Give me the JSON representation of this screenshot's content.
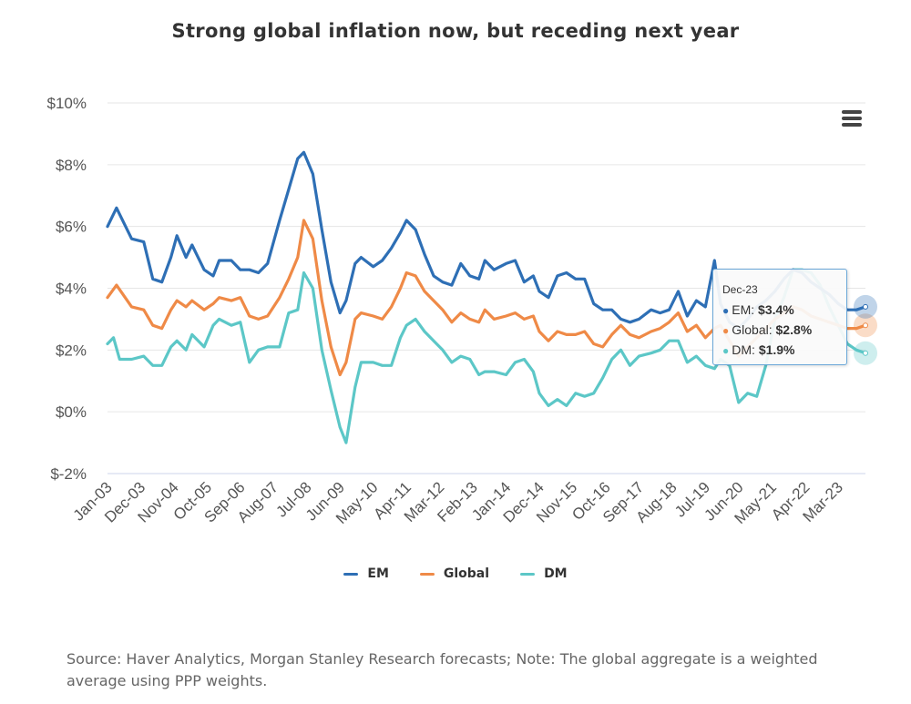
{
  "title": "Strong global inflation now, but receding next year",
  "source": "Source: Haver Analytics, Morgan Stanley Research forecasts; Note: The global aggregate is a weighted average using PPP weights.",
  "menu_icon": "hamburger-menu-icon",
  "tooltip": {
    "date": "Dec-23",
    "rows": [
      {
        "label": "EM: ",
        "value": "$3.4%",
        "color": "#2e6fb5"
      },
      {
        "label": "Global: ",
        "value": "$2.8%",
        "color": "#ef8a47"
      },
      {
        "label": "DM: ",
        "value": "$1.9%",
        "color": "#5cc7c7"
      }
    ]
  },
  "legend": [
    {
      "name": "EM",
      "color": "#2e6fb5"
    },
    {
      "name": "Global",
      "color": "#ef8a47"
    },
    {
      "name": "DM",
      "color": "#5cc7c7"
    }
  ],
  "chart_data": {
    "type": "line",
    "title": "Strong global inflation now, but receding next year",
    "ylim": [
      -2,
      10
    ],
    "y_ticks": [
      -2,
      0,
      2,
      4,
      6,
      8,
      10
    ],
    "y_tick_labels": [
      "$-2%",
      "$0%",
      "$2%",
      "$4%",
      "$6%",
      "$8%",
      "$10%"
    ],
    "x_range": [
      "2003-01",
      "2023-12"
    ],
    "x_tick_labels": [
      "Jan-03",
      "Dec-03",
      "Nov-04",
      "Oct-05",
      "Sep-06",
      "Aug-07",
      "Jul-08",
      "Jun-09",
      "May-10",
      "Apr-11",
      "Mar-12",
      "Feb-13",
      "Jan-14",
      "Dec-14",
      "Nov-15",
      "Oct-16",
      "Sep-17",
      "Aug-18",
      "Jul-19",
      "Jun-20",
      "May-21",
      "Apr-22",
      "Mar-23"
    ],
    "grid": true,
    "legend_position": "bottom",
    "series": [
      {
        "name": "EM",
        "color": "#2e6fb5",
        "points": [
          [
            "2003-01",
            6.0
          ],
          [
            "2003-04",
            6.6
          ],
          [
            "2003-09",
            5.6
          ],
          [
            "2004-01",
            5.5
          ],
          [
            "2004-04",
            4.3
          ],
          [
            "2004-07",
            4.2
          ],
          [
            "2004-10",
            5.0
          ],
          [
            "2004-12",
            5.7
          ],
          [
            "2005-03",
            5.0
          ],
          [
            "2005-05",
            5.4
          ],
          [
            "2005-09",
            4.6
          ],
          [
            "2005-12",
            4.4
          ],
          [
            "2006-02",
            4.9
          ],
          [
            "2006-06",
            4.9
          ],
          [
            "2006-09",
            4.6
          ],
          [
            "2006-12",
            4.6
          ],
          [
            "2007-03",
            4.5
          ],
          [
            "2007-06",
            4.8
          ],
          [
            "2007-10",
            6.2
          ],
          [
            "2008-01",
            7.2
          ],
          [
            "2008-04",
            8.2
          ],
          [
            "2008-06",
            8.4
          ],
          [
            "2008-09",
            7.7
          ],
          [
            "2008-12",
            5.9
          ],
          [
            "2009-03",
            4.2
          ],
          [
            "2009-06",
            3.2
          ],
          [
            "2009-08",
            3.6
          ],
          [
            "2009-11",
            4.8
          ],
          [
            "2010-01",
            5.0
          ],
          [
            "2010-05",
            4.7
          ],
          [
            "2010-08",
            4.9
          ],
          [
            "2010-11",
            5.3
          ],
          [
            "2011-02",
            5.8
          ],
          [
            "2011-04",
            6.2
          ],
          [
            "2011-07",
            5.9
          ],
          [
            "2011-10",
            5.1
          ],
          [
            "2012-01",
            4.4
          ],
          [
            "2012-04",
            4.2
          ],
          [
            "2012-07",
            4.1
          ],
          [
            "2012-10",
            4.8
          ],
          [
            "2013-01",
            4.4
          ],
          [
            "2013-04",
            4.3
          ],
          [
            "2013-06",
            4.9
          ],
          [
            "2013-09",
            4.6
          ],
          [
            "2014-01",
            4.8
          ],
          [
            "2014-04",
            4.9
          ],
          [
            "2014-07",
            4.2
          ],
          [
            "2014-10",
            4.4
          ],
          [
            "2014-12",
            3.9
          ],
          [
            "2015-03",
            3.7
          ],
          [
            "2015-06",
            4.4
          ],
          [
            "2015-09",
            4.5
          ],
          [
            "2015-12",
            4.3
          ],
          [
            "2016-03",
            4.3
          ],
          [
            "2016-06",
            3.5
          ],
          [
            "2016-09",
            3.3
          ],
          [
            "2016-12",
            3.3
          ],
          [
            "2017-03",
            3.0
          ],
          [
            "2017-06",
            2.9
          ],
          [
            "2017-09",
            3.0
          ],
          [
            "2018-01",
            3.3
          ],
          [
            "2018-04",
            3.2
          ],
          [
            "2018-07",
            3.3
          ],
          [
            "2018-10",
            3.9
          ],
          [
            "2019-01",
            3.1
          ],
          [
            "2019-04",
            3.6
          ],
          [
            "2019-07",
            3.4
          ],
          [
            "2019-10",
            4.9
          ],
          [
            "2019-12",
            3.5
          ],
          [
            "2020-03",
            2.9
          ],
          [
            "2020-06",
            2.7
          ],
          [
            "2020-09",
            3.0
          ],
          [
            "2020-12",
            3.4
          ],
          [
            "2021-03",
            3.6
          ],
          [
            "2021-06",
            3.9
          ],
          [
            "2021-09",
            4.3
          ],
          [
            "2021-12",
            4.6
          ],
          [
            "2022-03",
            4.5
          ],
          [
            "2022-06",
            4.2
          ],
          [
            "2022-09",
            4.0
          ],
          [
            "2022-12",
            3.8
          ],
          [
            "2023-03",
            3.5
          ],
          [
            "2023-06",
            3.3
          ],
          [
            "2023-09",
            3.3
          ],
          [
            "2023-12",
            3.4
          ]
        ]
      },
      {
        "name": "Global",
        "color": "#ef8a47",
        "points": [
          [
            "2003-01",
            3.7
          ],
          [
            "2003-04",
            4.1
          ],
          [
            "2003-09",
            3.4
          ],
          [
            "2004-01",
            3.3
          ],
          [
            "2004-04",
            2.8
          ],
          [
            "2004-07",
            2.7
          ],
          [
            "2004-10",
            3.3
          ],
          [
            "2004-12",
            3.6
          ],
          [
            "2005-03",
            3.4
          ],
          [
            "2005-05",
            3.6
          ],
          [
            "2005-09",
            3.3
          ],
          [
            "2005-12",
            3.5
          ],
          [
            "2006-02",
            3.7
          ],
          [
            "2006-06",
            3.6
          ],
          [
            "2006-09",
            3.7
          ],
          [
            "2006-12",
            3.1
          ],
          [
            "2007-03",
            3.0
          ],
          [
            "2007-06",
            3.1
          ],
          [
            "2007-10",
            3.7
          ],
          [
            "2008-01",
            4.3
          ],
          [
            "2008-04",
            5.0
          ],
          [
            "2008-06",
            6.2
          ],
          [
            "2008-09",
            5.6
          ],
          [
            "2008-12",
            3.6
          ],
          [
            "2009-03",
            2.1
          ],
          [
            "2009-06",
            1.2
          ],
          [
            "2009-08",
            1.6
          ],
          [
            "2009-11",
            3.0
          ],
          [
            "2010-01",
            3.2
          ],
          [
            "2010-05",
            3.1
          ],
          [
            "2010-08",
            3.0
          ],
          [
            "2010-11",
            3.4
          ],
          [
            "2011-02",
            4.0
          ],
          [
            "2011-04",
            4.5
          ],
          [
            "2011-07",
            4.4
          ],
          [
            "2011-10",
            3.9
          ],
          [
            "2012-01",
            3.6
          ],
          [
            "2012-04",
            3.3
          ],
          [
            "2012-07",
            2.9
          ],
          [
            "2012-10",
            3.2
          ],
          [
            "2013-01",
            3.0
          ],
          [
            "2013-04",
            2.9
          ],
          [
            "2013-06",
            3.3
          ],
          [
            "2013-09",
            3.0
          ],
          [
            "2014-01",
            3.1
          ],
          [
            "2014-04",
            3.2
          ],
          [
            "2014-07",
            3.0
          ],
          [
            "2014-10",
            3.1
          ],
          [
            "2014-12",
            2.6
          ],
          [
            "2015-03",
            2.3
          ],
          [
            "2015-06",
            2.6
          ],
          [
            "2015-09",
            2.5
          ],
          [
            "2015-12",
            2.5
          ],
          [
            "2016-03",
            2.6
          ],
          [
            "2016-06",
            2.2
          ],
          [
            "2016-09",
            2.1
          ],
          [
            "2016-12",
            2.5
          ],
          [
            "2017-03",
            2.8
          ],
          [
            "2017-06",
            2.5
          ],
          [
            "2017-09",
            2.4
          ],
          [
            "2018-01",
            2.6
          ],
          [
            "2018-04",
            2.7
          ],
          [
            "2018-07",
            2.9
          ],
          [
            "2018-10",
            3.2
          ],
          [
            "2019-01",
            2.6
          ],
          [
            "2019-04",
            2.8
          ],
          [
            "2019-07",
            2.4
          ],
          [
            "2019-10",
            2.7
          ],
          [
            "2019-12",
            2.8
          ],
          [
            "2020-03",
            2.3
          ],
          [
            "2020-06",
            1.8
          ],
          [
            "2020-09",
            2.1
          ],
          [
            "2020-12",
            2.4
          ],
          [
            "2021-03",
            2.7
          ],
          [
            "2021-06",
            3.0
          ],
          [
            "2021-09",
            3.2
          ],
          [
            "2021-12",
            3.4
          ],
          [
            "2022-03",
            3.3
          ],
          [
            "2022-06",
            3.1
          ],
          [
            "2022-09",
            3.0
          ],
          [
            "2022-12",
            2.9
          ],
          [
            "2023-03",
            2.8
          ],
          [
            "2023-06",
            2.7
          ],
          [
            "2023-09",
            2.7
          ],
          [
            "2023-12",
            2.8
          ]
        ]
      },
      {
        "name": "DM",
        "color": "#5cc7c7",
        "points": [
          [
            "2003-01",
            2.2
          ],
          [
            "2003-03",
            2.4
          ],
          [
            "2003-05",
            1.7
          ],
          [
            "2003-09",
            1.7
          ],
          [
            "2004-01",
            1.8
          ],
          [
            "2004-04",
            1.5
          ],
          [
            "2004-07",
            1.5
          ],
          [
            "2004-10",
            2.1
          ],
          [
            "2004-12",
            2.3
          ],
          [
            "2005-03",
            2.0
          ],
          [
            "2005-05",
            2.5
          ],
          [
            "2005-09",
            2.1
          ],
          [
            "2005-12",
            2.8
          ],
          [
            "2006-02",
            3.0
          ],
          [
            "2006-06",
            2.8
          ],
          [
            "2006-09",
            2.9
          ],
          [
            "2006-12",
            1.6
          ],
          [
            "2007-03",
            2.0
          ],
          [
            "2007-06",
            2.1
          ],
          [
            "2007-10",
            2.1
          ],
          [
            "2008-01",
            3.2
          ],
          [
            "2008-04",
            3.3
          ],
          [
            "2008-06",
            4.5
          ],
          [
            "2008-09",
            4.0
          ],
          [
            "2008-12",
            2.0
          ],
          [
            "2009-03",
            0.7
          ],
          [
            "2009-06",
            -0.5
          ],
          [
            "2009-08",
            -1.0
          ],
          [
            "2009-11",
            0.8
          ],
          [
            "2010-01",
            1.6
          ],
          [
            "2010-05",
            1.6
          ],
          [
            "2010-08",
            1.5
          ],
          [
            "2010-11",
            1.5
          ],
          [
            "2011-02",
            2.4
          ],
          [
            "2011-04",
            2.8
          ],
          [
            "2011-07",
            3.0
          ],
          [
            "2011-10",
            2.6
          ],
          [
            "2012-01",
            2.3
          ],
          [
            "2012-04",
            2.0
          ],
          [
            "2012-07",
            1.6
          ],
          [
            "2012-10",
            1.8
          ],
          [
            "2013-01",
            1.7
          ],
          [
            "2013-04",
            1.2
          ],
          [
            "2013-06",
            1.3
          ],
          [
            "2013-09",
            1.3
          ],
          [
            "2014-01",
            1.2
          ],
          [
            "2014-04",
            1.6
          ],
          [
            "2014-07",
            1.7
          ],
          [
            "2014-10",
            1.3
          ],
          [
            "2014-12",
            0.6
          ],
          [
            "2015-03",
            0.2
          ],
          [
            "2015-06",
            0.4
          ],
          [
            "2015-09",
            0.2
          ],
          [
            "2015-12",
            0.6
          ],
          [
            "2016-03",
            0.5
          ],
          [
            "2016-06",
            0.6
          ],
          [
            "2016-09",
            1.1
          ],
          [
            "2016-12",
            1.7
          ],
          [
            "2017-03",
            2.0
          ],
          [
            "2017-06",
            1.5
          ],
          [
            "2017-09",
            1.8
          ],
          [
            "2018-01",
            1.9
          ],
          [
            "2018-04",
            2.0
          ],
          [
            "2018-07",
            2.3
          ],
          [
            "2018-10",
            2.3
          ],
          [
            "2019-01",
            1.6
          ],
          [
            "2019-04",
            1.8
          ],
          [
            "2019-07",
            1.5
          ],
          [
            "2019-10",
            1.4
          ],
          [
            "2019-12",
            1.7
          ],
          [
            "2020-03",
            1.5
          ],
          [
            "2020-06",
            0.3
          ],
          [
            "2020-09",
            0.6
          ],
          [
            "2020-12",
            0.5
          ],
          [
            "2021-03",
            1.5
          ],
          [
            "2021-06",
            3.0
          ],
          [
            "2021-09",
            3.7
          ],
          [
            "2021-12",
            4.6
          ],
          [
            "2022-03",
            4.6
          ],
          [
            "2022-06",
            4.5
          ],
          [
            "2022-09",
            4.1
          ],
          [
            "2022-12",
            3.4
          ],
          [
            "2023-03",
            2.8
          ],
          [
            "2023-06",
            2.2
          ],
          [
            "2023-09",
            2.0
          ],
          [
            "2023-12",
            1.9
          ]
        ]
      }
    ]
  }
}
